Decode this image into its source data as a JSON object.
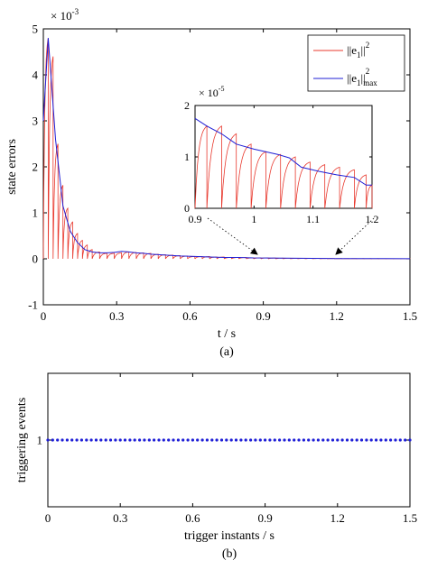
{
  "chart_data": [
    {
      "type": "line",
      "panel_label": "(a)",
      "xlabel": "t / s",
      "ylabel": "state errors",
      "y_multiplier": "× 10",
      "y_exponent": "-3",
      "xlim": [
        0,
        1.5
      ],
      "ylim": [
        -1,
        5
      ],
      "xticks": [
        0,
        0.3,
        0.6,
        0.9,
        1.2,
        1.5
      ],
      "xtick_labels": [
        "0",
        "0.3",
        "0.6",
        "0.9",
        "1.2",
        "1.5"
      ],
      "yticks": [
        -1,
        0,
        1,
        2,
        3,
        4,
        5
      ],
      "ytick_labels": [
        "-1",
        "0",
        "1",
        "2",
        "3",
        "4",
        "5"
      ],
      "legend_position": "top-right",
      "legend": [
        {
          "base": "||e",
          "sub": "1",
          "tail": "||",
          "sup": "2",
          "sub2": "",
          "color": "#e8392e"
        },
        {
          "base": "||e",
          "sub": "1",
          "tail": "||",
          "sup": "2",
          "sub2": "max",
          "color": "#1f1fd6"
        }
      ],
      "series": [
        {
          "color": "#e8392e",
          "style": "sawtooth",
          "event_times": [
            0.0,
            0.02,
            0.04,
            0.06,
            0.08,
            0.1,
            0.12,
            0.14,
            0.16,
            0.18,
            0.2,
            0.23,
            0.26,
            0.29,
            0.32,
            0.35,
            0.38,
            0.41,
            0.44,
            0.47,
            0.5,
            0.53,
            0.56,
            0.59,
            0.62,
            0.65,
            0.68,
            0.71,
            0.74,
            0.77,
            0.8,
            0.83,
            0.86,
            0.89,
            0.92,
            0.95,
            0.98,
            1.01,
            1.04,
            1.07,
            1.1,
            1.13,
            1.16,
            1.19,
            1.22,
            1.25,
            1.28,
            1.31,
            1.34,
            1.37,
            1.4,
            1.43,
            1.46,
            1.49
          ],
          "peak_values": [
            4.8,
            4.4,
            2.5,
            1.6,
            1.1,
            0.8,
            0.55,
            0.4,
            0.3,
            0.2,
            0.15,
            0.12,
            0.12,
            0.13,
            0.15,
            0.14,
            0.13,
            0.12,
            0.1,
            0.09,
            0.08,
            0.07,
            0.06,
            0.05,
            0.05,
            0.05,
            0.04,
            0.04,
            0.03,
            0.03,
            0.03,
            0.02,
            0.02,
            0.02,
            0.016,
            0.013,
            0.012,
            0.01,
            0.01,
            0.009,
            0.008,
            0.007,
            0.007,
            0.005,
            0.004,
            0.004,
            0.003,
            0.003,
            0.003,
            0.002,
            0.002,
            0.002,
            0.002,
            0.002
          ]
        },
        {
          "color": "#1f1fd6",
          "style": "line",
          "x": [
            0.0,
            0.02,
            0.05,
            0.08,
            0.11,
            0.14,
            0.17,
            0.2,
            0.23,
            0.26,
            0.29,
            0.32,
            0.35,
            0.38,
            0.41,
            0.44,
            0.47,
            0.5,
            0.56,
            0.62,
            0.68,
            0.74,
            0.8,
            0.86,
            0.92,
            0.98,
            1.04,
            1.1,
            1.16,
            1.2,
            1.3,
            1.4,
            1.5
          ],
          "y": [
            3.0,
            4.8,
            2.6,
            1.15,
            0.6,
            0.35,
            0.2,
            0.15,
            0.13,
            0.13,
            0.14,
            0.16,
            0.15,
            0.13,
            0.12,
            0.1,
            0.09,
            0.08,
            0.06,
            0.05,
            0.04,
            0.03,
            0.03,
            0.02,
            0.017,
            0.013,
            0.011,
            0.009,
            0.007,
            0.005,
            0.004,
            0.003,
            0.002
          ]
        }
      ],
      "inset": {
        "xlim": [
          0.9,
          1.2
        ],
        "ylim": [
          0,
          2
        ],
        "y_multiplier": "× 10",
        "y_exponent": "-5",
        "xticks": [
          0.9,
          1.0,
          1.1,
          1.2
        ],
        "xtick_labels": [
          "0.9",
          "1",
          "1.1",
          "1.2"
        ],
        "yticks": [
          0,
          1,
          2
        ],
        "ytick_labels": [
          "0",
          "1",
          "2"
        ],
        "zoom_from": [
          [
            0.9,
            0
          ],
          [
            1.2,
            0
          ]
        ],
        "red_event_times": [
          0.9,
          0.92,
          0.945,
          0.97,
          0.995,
          1.02,
          1.045,
          1.07,
          1.095,
          1.12,
          1.145,
          1.17,
          1.19
        ],
        "red_peaks": [
          1.6,
          1.6,
          1.45,
          1.25,
          1.1,
          1.05,
          1.0,
          0.9,
          0.85,
          0.8,
          0.75,
          0.65,
          0.45
        ],
        "blue_x": [
          0.9,
          0.92,
          0.945,
          0.97,
          1.0,
          1.04,
          1.06,
          1.08,
          1.11,
          1.14,
          1.17,
          1.19,
          1.2
        ],
        "blue_y": [
          1.75,
          1.6,
          1.45,
          1.25,
          1.15,
          1.05,
          0.98,
          0.8,
          0.72,
          0.65,
          0.6,
          0.45,
          0.45
        ]
      }
    },
    {
      "type": "scatter",
      "panel_label": "(b)",
      "xlabel": "trigger instants / s",
      "ylabel": "triggering events",
      "xlim": [
        0,
        1.5
      ],
      "ylim": [
        0,
        2
      ],
      "xticks": [
        0,
        0.3,
        0.6,
        0.9,
        1.2,
        1.5
      ],
      "xtick_labels": [
        "0",
        "0.3",
        "0.6",
        "0.9",
        "1.2",
        "1.5"
      ],
      "yticks": [
        1
      ],
      "ytick_labels": [
        "1"
      ],
      "series": [
        {
          "color": "#1f1fd6",
          "y": 1,
          "x": [
            0.0,
            0.02,
            0.04,
            0.06,
            0.08,
            0.1,
            0.12,
            0.14,
            0.16,
            0.18,
            0.2,
            0.22,
            0.24,
            0.26,
            0.28,
            0.3,
            0.32,
            0.34,
            0.36,
            0.38,
            0.4,
            0.42,
            0.44,
            0.46,
            0.48,
            0.5,
            0.52,
            0.54,
            0.56,
            0.58,
            0.6,
            0.62,
            0.64,
            0.66,
            0.68,
            0.7,
            0.72,
            0.74,
            0.76,
            0.78,
            0.8,
            0.82,
            0.84,
            0.86,
            0.88,
            0.9,
            0.92,
            0.94,
            0.96,
            0.98,
            1.0,
            1.02,
            1.04,
            1.06,
            1.08,
            1.1,
            1.12,
            1.14,
            1.16,
            1.18,
            1.2,
            1.22,
            1.24,
            1.26,
            1.28,
            1.3,
            1.32,
            1.34,
            1.36,
            1.38,
            1.4,
            1.42,
            1.44,
            1.46,
            1.48,
            1.5
          ]
        }
      ]
    }
  ]
}
